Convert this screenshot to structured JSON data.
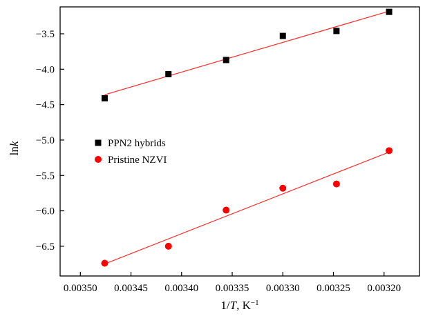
{
  "chart_data": {
    "type": "scatter",
    "xlabel": "1/T, K⁻¹",
    "ylabel": "lnk",
    "xlim": [
      0.00352,
      0.003165
    ],
    "ylim": [
      -6.92,
      -3.12
    ],
    "x_reversed": true,
    "x_ticks": [
      0.0035,
      0.00345,
      0.0034,
      0.00335,
      0.0033,
      0.00325,
      0.0032
    ],
    "x_tick_labels": [
      "0.00350",
      "0.00345",
      "0.00340",
      "0.00335",
      "0.00330",
      "0.00325",
      "0.00320"
    ],
    "y_ticks": [
      -3.5,
      -4.0,
      -4.5,
      -5.0,
      -5.5,
      -6.0,
      -6.5
    ],
    "y_tick_labels": [
      "−3.5",
      "−4.0",
      "−4.5",
      "−5.0",
      "−5.5",
      "−6.0",
      "−6.5"
    ],
    "grid": false,
    "legend_position": "center-left",
    "series": [
      {
        "name": "PPN2 hybrids",
        "marker": "square",
        "color": "#000000",
        "fit_color": "#ff2a2a",
        "x": [
          0.003476,
          0.003413,
          0.003356,
          0.0033,
          0.003247,
          0.003195
        ],
        "y": [
          -4.41,
          -4.07,
          -3.87,
          -3.53,
          -3.46,
          -3.19
        ],
        "fit_line": [
          [
            0.003476,
            -4.36
          ],
          [
            0.003195,
            -3.18
          ]
        ]
      },
      {
        "name": "Pristine NZVI",
        "marker": "circle",
        "color": "#ff0000",
        "fit_color": "#ff2a2a",
        "x": [
          0.003476,
          0.003413,
          0.003356,
          0.0033,
          0.003247,
          0.003195
        ],
        "y": [
          -6.74,
          -6.5,
          -5.99,
          -5.68,
          -5.62,
          -5.15
        ],
        "fit_line": [
          [
            0.003476,
            -6.75
          ],
          [
            0.003195,
            -5.17
          ]
        ]
      }
    ]
  }
}
